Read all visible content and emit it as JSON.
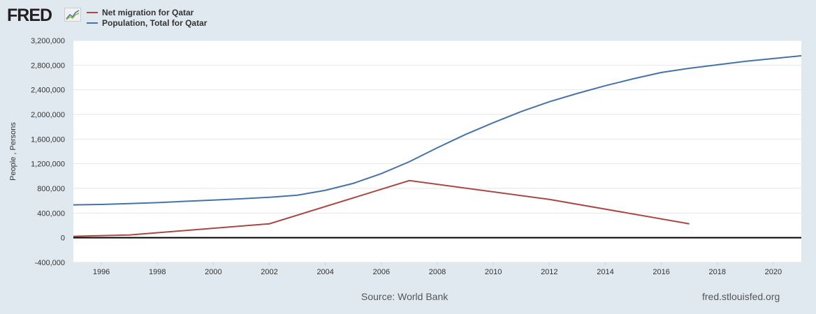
{
  "logo": "FRED",
  "chart_data": {
    "type": "line",
    "ylabel": "People , Persons",
    "xlim": [
      1995,
      2021
    ],
    "ylim": [
      -400000,
      3200000
    ],
    "yticks": [
      -400000,
      0,
      400000,
      800000,
      1200000,
      1600000,
      2000000,
      2400000,
      2800000,
      3200000
    ],
    "ytick_labels": [
      "-400,000",
      "0",
      "400,000",
      "800,000",
      "1,200,000",
      "1,600,000",
      "2,000,000",
      "2,400,000",
      "2,800,000",
      "3,200,000"
    ],
    "xticks": [
      "1996",
      "1998",
      "2000",
      "2002",
      "2004",
      "2006",
      "2008",
      "2010",
      "2012",
      "2014",
      "2016",
      "2018",
      "2020"
    ],
    "grid": true,
    "legend_placement": "top-left",
    "series": [
      {
        "name": "Net migration for Qatar",
        "color": "#aa4643",
        "x": [
          1995,
          1997,
          2002,
          2007,
          2012,
          2017
        ],
        "values": [
          22000,
          45000,
          226000,
          927000,
          622000,
          226000
        ]
      },
      {
        "name": "Population, Total for Qatar",
        "color": "#4572a7",
        "x": [
          1995,
          1996,
          1997,
          1998,
          1999,
          2000,
          2001,
          2002,
          2003,
          2004,
          2005,
          2006,
          2007,
          2008,
          2009,
          2010,
          2011,
          2012,
          2013,
          2014,
          2015,
          2016,
          2017,
          2018,
          2019,
          2020,
          2021
        ],
        "values": [
          532000,
          540000,
          554000,
          570000,
          590000,
          611000,
          632000,
          656000,
          690000,
          769000,
          882000,
          1040000,
          1233000,
          1459000,
          1674000,
          1866000,
          2047000,
          2206000,
          2341000,
          2466000,
          2579000,
          2681000,
          2749000,
          2805000,
          2862000,
          2907000,
          2952000
        ]
      }
    ]
  },
  "footer": {
    "source": "Source: World Bank",
    "site": "fred.stlouisfed.org"
  }
}
